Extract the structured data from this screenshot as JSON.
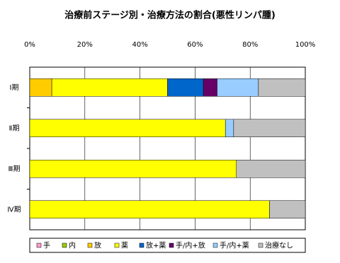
{
  "chart_data": {
    "type": "stacked-barh",
    "title": "治療前ステージ別・治療方法の割合(悪性リンパ腫)",
    "categories": [
      "Ⅰ期",
      "Ⅱ期",
      "Ⅲ期",
      "Ⅳ期"
    ],
    "series": [
      {
        "name": "手",
        "color": "#FF99CC",
        "values": [
          0,
          0,
          0,
          0
        ]
      },
      {
        "name": "内",
        "color": "#99CC00",
        "values": [
          0,
          0,
          0,
          0
        ]
      },
      {
        "name": "放",
        "color": "#FFCC00",
        "values": [
          8,
          0,
          0,
          0
        ]
      },
      {
        "name": "薬",
        "color": "#FFFF00",
        "values": [
          42,
          71,
          75,
          87
        ]
      },
      {
        "name": "放+薬",
        "color": "#0066CC",
        "values": [
          13,
          0,
          0,
          0
        ]
      },
      {
        "name": "手/内+放",
        "color": "#660066",
        "values": [
          5,
          0,
          0,
          0
        ]
      },
      {
        "name": "手/内+薬",
        "color": "#99CCFF",
        "values": [
          15,
          3,
          0,
          0
        ]
      },
      {
        "name": "治療なし",
        "color": "#C0C0C0",
        "values": [
          17,
          26,
          25,
          13
        ]
      }
    ],
    "xlim": [
      0,
      100
    ],
    "xticks": [
      {
        "value": 0,
        "label": "0%"
      },
      {
        "value": 20,
        "label": "20%"
      },
      {
        "value": 40,
        "label": "40%"
      },
      {
        "value": 60,
        "label": "60%"
      },
      {
        "value": 80,
        "label": "80%"
      },
      {
        "value": 100,
        "label": "100%"
      }
    ],
    "grid": true,
    "legend": "bottom"
  }
}
